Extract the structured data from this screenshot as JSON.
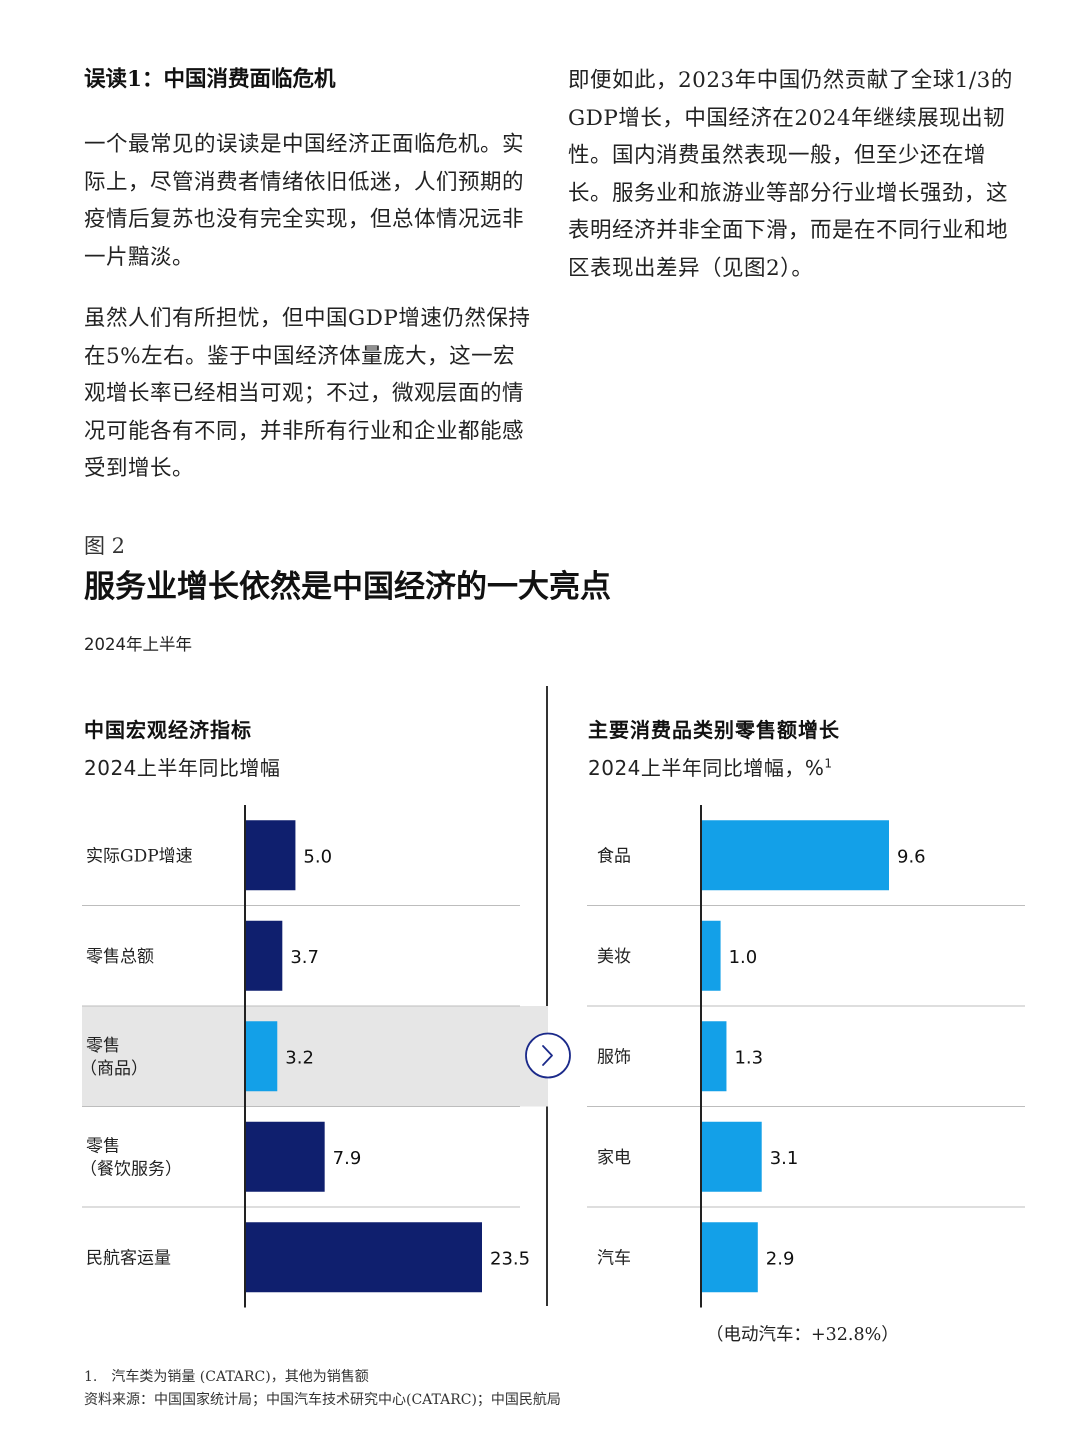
{
  "text": {
    "lead_heading": "误读1：中国消费面临危机",
    "left_para_1": "一个最常见的误读是中国经济正面临危机。实际上，尽管消费者情绪依旧低迷，人们预期的疫情后复苏也没有完全实现，但总体情况远非一片黯淡。",
    "left_para_2": "虽然人们有所担忧，但中国GDP增速仍然保持在5%左右。鉴于中国经济体量庞大，这一宏观增长率已经相当可观；不过，微观层面的情况可能各有不同，并非所有行业和企业都能感受到增长。",
    "right_para_1": "即便如此，2023年中国仍然贡献了全球1/3的GDP增长，中国经济在2024年继续展现出韧性。国内消费虽然表现一般，但至少还在增长。服务业和旅游业等部分行业增长强劲，这表明经济并非全面下滑，而是在不同行业和地区表现出差异（见图2）。"
  },
  "figure": {
    "label": "图 2",
    "title": "服务业增长依然是中国经济的一大亮点",
    "period": "2024年上半年",
    "note": "（电动汽车：+32.8%）",
    "footnote": "1.　汽车类为销量 (CATARC)，其他为销售额",
    "source": "资料来源：中国国家统计局；中国汽车技术研究中心(CATARC)；中国民航局",
    "arrow_icon": "chevron-right-icon"
  },
  "colors": {
    "dark_bar": "#0f1f6e",
    "light_bar": "#13a0e8",
    "highlight_bg": "#e6e6e6",
    "text": "#1a1a1a"
  },
  "chart_data": [
    {
      "type": "bar",
      "orientation": "horizontal",
      "title": "中国宏观经济指标",
      "subtitle": "2024上半年同比增幅",
      "categories": [
        "实际GDP增速",
        "零售总额",
        "零售\n（商品）",
        "零售\n（餐饮服务）",
        "民航客运量"
      ],
      "values": [
        5.0,
        3.7,
        3.2,
        7.9,
        23.5
      ],
      "value_labels": [
        "5.0",
        "3.7",
        "3.2",
        "7.9",
        "23.5"
      ],
      "highlight_index": 2,
      "xlim": [
        0,
        23.5
      ]
    },
    {
      "type": "bar",
      "orientation": "horizontal",
      "title": "主要消费品类别零售额增长",
      "subtitle": "2024上半年同比增幅，%",
      "subtitle_sup": "1",
      "categories": [
        "食品",
        "美妆",
        "服饰",
        "家电",
        "汽车"
      ],
      "values": [
        9.6,
        1.0,
        1.3,
        3.1,
        2.9
      ],
      "value_labels": [
        "9.6",
        "1.0",
        "1.3",
        "3.1",
        "2.9"
      ],
      "xlim": [
        0,
        9.6
      ]
    }
  ]
}
